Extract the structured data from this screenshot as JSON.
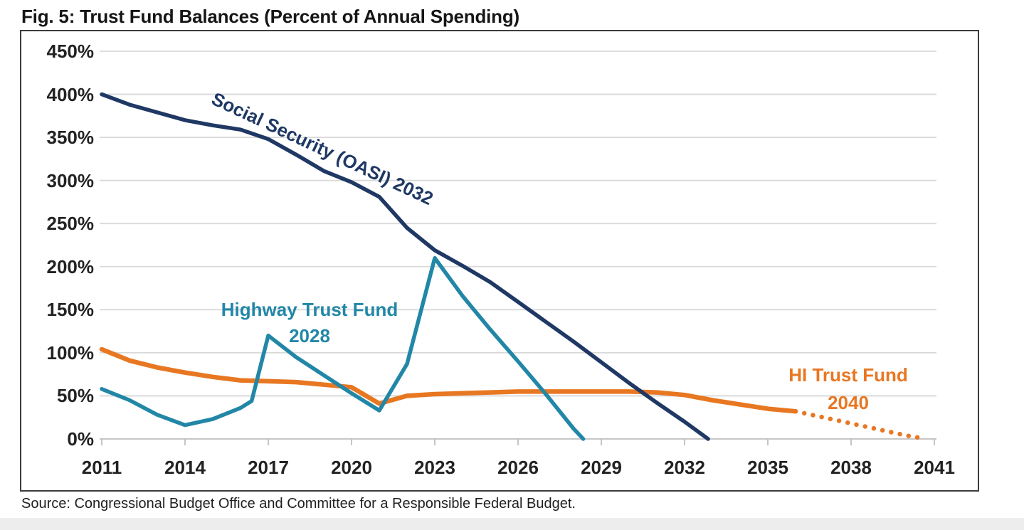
{
  "title": "Fig. 5: Trust Fund Balances (Percent of Annual Spending)",
  "source": "Source: Congressional Budget Office and Committee for a Responsible Federal Budget.",
  "chart_data": {
    "type": "line",
    "title": "Fig. 5: Trust Fund Balances (Percent of Annual Spending)",
    "xlabel": "",
    "ylabel": "",
    "xlim": [
      2011,
      2041
    ],
    "ylim": [
      0,
      450
    ],
    "grid": true,
    "legend_position": "inline-labels",
    "x_ticks": [
      2011,
      2014,
      2017,
      2020,
      2023,
      2026,
      2029,
      2032,
      2035,
      2038,
      2041
    ],
    "y_ticks": [
      {
        "value": 450,
        "label": "450%"
      },
      {
        "value": 400,
        "label": "400%"
      },
      {
        "value": 350,
        "label": "350%"
      },
      {
        "value": 300,
        "label": "300%"
      },
      {
        "value": 250,
        "label": "250%"
      },
      {
        "value": 200,
        "label": "200%"
      },
      {
        "value": 150,
        "label": "150%"
      },
      {
        "value": 100,
        "label": "100%"
      },
      {
        "value": 50,
        "label": "50%"
      },
      {
        "value": 0,
        "label": "0%"
      }
    ],
    "series": [
      {
        "name": "HI Trust Fund 2040",
        "color": "#E87722",
        "style": "solid",
        "dotted_from": 2036,
        "points": [
          [
            2011,
            104
          ],
          [
            2012,
            91
          ],
          [
            2013,
            83
          ],
          [
            2014,
            77
          ],
          [
            2015,
            72
          ],
          [
            2016,
            68
          ],
          [
            2017,
            67
          ],
          [
            2018,
            66
          ],
          [
            2019,
            63
          ],
          [
            2020,
            60
          ],
          [
            2021,
            41
          ],
          [
            2022,
            50
          ],
          [
            2023,
            52
          ],
          [
            2024,
            53
          ],
          [
            2025,
            54
          ],
          [
            2026,
            55
          ],
          [
            2027,
            55
          ],
          [
            2028,
            55
          ],
          [
            2029,
            55
          ],
          [
            2030,
            55
          ],
          [
            2031,
            54
          ],
          [
            2032,
            51
          ],
          [
            2033,
            45
          ],
          [
            2034,
            40
          ],
          [
            2035,
            35
          ],
          [
            2036,
            32
          ],
          [
            2037,
            25
          ],
          [
            2038,
            18
          ],
          [
            2039,
            11
          ],
          [
            2040,
            4
          ],
          [
            2040.7,
            0
          ]
        ]
      },
      {
        "name": "Highway Trust Fund 2028",
        "color": "#2287A7",
        "style": "solid",
        "points": [
          [
            2011,
            58
          ],
          [
            2012,
            45
          ],
          [
            2013,
            28
          ],
          [
            2014,
            16
          ],
          [
            2015,
            23
          ],
          [
            2016,
            36
          ],
          [
            2016.4,
            44
          ],
          [
            2017,
            120
          ],
          [
            2018,
            95
          ],
          [
            2019,
            74
          ],
          [
            2020,
            53
          ],
          [
            2021,
            33
          ],
          [
            2022,
            87
          ],
          [
            2023,
            210
          ],
          [
            2024,
            166
          ],
          [
            2025,
            127
          ],
          [
            2026,
            90
          ],
          [
            2027,
            52
          ],
          [
            2028,
            12
          ],
          [
            2028.35,
            0
          ]
        ]
      },
      {
        "name": "Social Security (OASI) 2032",
        "color": "#1F3864",
        "style": "solid",
        "points": [
          [
            2011,
            400
          ],
          [
            2012,
            388
          ],
          [
            2013,
            379
          ],
          [
            2014,
            370
          ],
          [
            2015,
            364
          ],
          [
            2016,
            359
          ],
          [
            2017,
            348
          ],
          [
            2018,
            330
          ],
          [
            2019,
            311
          ],
          [
            2020,
            298
          ],
          [
            2021,
            281
          ],
          [
            2022,
            245
          ],
          [
            2023,
            219
          ],
          [
            2024,
            201
          ],
          [
            2025,
            182
          ],
          [
            2026,
            159
          ],
          [
            2027,
            136
          ],
          [
            2028,
            113
          ],
          [
            2029,
            89
          ],
          [
            2030,
            65
          ],
          [
            2031,
            42
          ],
          [
            2032,
            20
          ],
          [
            2032.85,
            0
          ]
        ]
      }
    ],
    "annotations": [
      {
        "id": "social-security",
        "line1": "Social Security (OASI) 2032",
        "line2": "",
        "color": "#1F3864",
        "rotation_deg": 25
      },
      {
        "id": "highway",
        "line1": "Highway Trust Fund",
        "line2": "2028",
        "color": "#2287A7",
        "rotation_deg": 0
      },
      {
        "id": "hi",
        "line1": "HI Trust Fund",
        "line2": "2040",
        "color": "#E87722",
        "rotation_deg": 0
      }
    ],
    "colors": {
      "gridline": "#D9D9D9",
      "axis": "#BFBFBF",
      "plot_border": "#3C3C3C"
    }
  }
}
